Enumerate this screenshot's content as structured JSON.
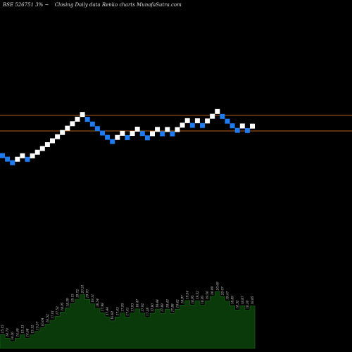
{
  "header": {
    "symbol": "BSE 526751 3%",
    "suffix": "~",
    "description": "Closing Daily data  Renko  charts MunafaSutra.com"
  },
  "colors": {
    "background": "#000000",
    "up_brick": "#ffffff",
    "down_brick": "#1e7bf0",
    "reference_line": "#b8621b",
    "volume_fill": "#0a3a0a",
    "volume_edge": "#1a6a1a",
    "label_text": "#dddddd"
  },
  "chart_data": {
    "type": "renko",
    "title": "BSE 526751 3% Closing Daily data Renko charts",
    "bricks": [
      {
        "dir": "down",
        "value": 15.15
      },
      {
        "dir": "down",
        "value": 14.7
      },
      {
        "dir": "down",
        "value": 14.26
      },
      {
        "dir": "up",
        "value": 14.69
      },
      {
        "dir": "up",
        "value": 15.13
      },
      {
        "dir": "down",
        "value": 14.68
      },
      {
        "dir": "up",
        "value": 15.12
      },
      {
        "dir": "up",
        "value": 15.57
      },
      {
        "dir": "up",
        "value": 16.04
      },
      {
        "dir": "up",
        "value": 16.52
      },
      {
        "dir": "up",
        "value": 17.01
      },
      {
        "dir": "up",
        "value": 17.52
      },
      {
        "dir": "up",
        "value": 18.05
      },
      {
        "dir": "up",
        "value": 18.59
      },
      {
        "dir": "up",
        "value": 19.15
      },
      {
        "dir": "up",
        "value": 19.72
      },
      {
        "dir": "up",
        "value": 20.31
      },
      {
        "dir": "down",
        "value": 19.7
      },
      {
        "dir": "down",
        "value": 19.11
      },
      {
        "dir": "down",
        "value": 18.54
      },
      {
        "dir": "down",
        "value": 17.98
      },
      {
        "dir": "down",
        "value": 17.44
      },
      {
        "dir": "down",
        "value": 16.92
      },
      {
        "dir": "up",
        "value": 17.43
      },
      {
        "dir": "up",
        "value": 17.95
      },
      {
        "dir": "down",
        "value": 17.41
      },
      {
        "dir": "up",
        "value": 17.93
      },
      {
        "dir": "up",
        "value": 18.47
      },
      {
        "dir": "down",
        "value": 17.92
      },
      {
        "dir": "down",
        "value": 17.38
      },
      {
        "dir": "up",
        "value": 17.9
      },
      {
        "dir": "up",
        "value": 18.44
      },
      {
        "dir": "down",
        "value": 17.89
      },
      {
        "dir": "up",
        "value": 18.43
      },
      {
        "dir": "down",
        "value": 17.88
      },
      {
        "dir": "up",
        "value": 18.42
      },
      {
        "dir": "up",
        "value": 18.97
      },
      {
        "dir": "up",
        "value": 19.54
      },
      {
        "dir": "down",
        "value": 18.95
      },
      {
        "dir": "up",
        "value": 19.52
      },
      {
        "dir": "down",
        "value": 18.93
      },
      {
        "dir": "up",
        "value": 19.5
      },
      {
        "dir": "up",
        "value": 20.09
      },
      {
        "dir": "up",
        "value": 20.69
      },
      {
        "dir": "down",
        "value": 20.07
      },
      {
        "dir": "down",
        "value": 19.47
      },
      {
        "dir": "down",
        "value": 18.89
      },
      {
        "dir": "down",
        "value": 18.32
      },
      {
        "dir": "up",
        "value": 18.87
      },
      {
        "dir": "down",
        "value": 18.3
      },
      {
        "dir": "up",
        "value": 18.85
      }
    ],
    "volume_labels": [
      "15.15",
      "14.70",
      "14.26",
      "14.69",
      "15.13",
      "14.68",
      "15.12",
      "15.57",
      "16.04",
      "16.52",
      "17.01",
      "17.52",
      "18.05",
      "18.59",
      "19.15",
      "19.72",
      "20.31",
      "19.70",
      "19.11",
      "18.54",
      "17.98",
      "17.44",
      "16.92",
      "17.43",
      "17.95",
      "17.41",
      "17.93",
      "18.47",
      "17.92",
      "17.38",
      "17.90",
      "18.44",
      "17.89",
      "18.43",
      "17.88",
      "18.42",
      "18.97",
      "19.54",
      "18.95",
      "19.52",
      "18.93",
      "19.50",
      "20.09",
      "20.69",
      "20.07",
      "19.47",
      "18.89",
      "18.32",
      "18.87",
      "18.30",
      "18.85"
    ],
    "reference_lines": [
      20.2,
      18.25
    ],
    "grid": false
  }
}
